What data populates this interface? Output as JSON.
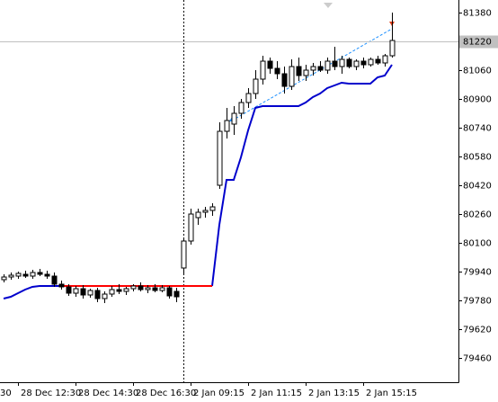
{
  "chart_data": {
    "type": "candlestick",
    "categories": [
      null,
      null,
      "28 Dec 12:30",
      null,
      null,
      null,
      null,
      null,
      null,
      null,
      "28 Dec 14:30",
      null,
      null,
      null,
      null,
      null,
      null,
      null,
      "28 Dec 16:30",
      null,
      null,
      null,
      null,
      null,
      null,
      null,
      "2 Jan 09:15",
      null,
      null,
      null,
      null,
      null,
      null,
      null,
      "2 Jan 11:15",
      null,
      null,
      null,
      null,
      null,
      null,
      null,
      "2 Jan 13:15",
      null,
      null,
      null,
      null,
      null,
      null,
      null,
      "2 Jan 15:15",
      null,
      null,
      null,
      null
    ],
    "x_label_partial": "30",
    "open": [
      79895,
      79910,
      79915,
      79925,
      79915,
      79935,
      79925,
      79915,
      79870,
      79855,
      79820,
      79845,
      79810,
      79835,
      79790,
      79815,
      79840,
      79830,
      79845,
      79860,
      79840,
      79850,
      79835,
      79850,
      79830,
      79960,
      80110,
      80240,
      80270,
      80280,
      80420,
      80720,
      80760,
      80820,
      80880,
      80930,
      81010,
      81110,
      81070,
      81040,
      80970,
      81080,
      81030,
      81060,
      81080,
      81060,
      81110,
      81080,
      81120,
      81080,
      81110,
      81090,
      81120,
      81100,
      81140
    ],
    "high": [
      79925,
      79935,
      79940,
      79945,
      79950,
      79955,
      79945,
      79935,
      79890,
      79870,
      79860,
      79865,
      79845,
      79850,
      79830,
      79860,
      79870,
      79855,
      79870,
      79880,
      79865,
      79870,
      79865,
      79860,
      79850,
      80120,
      80290,
      80290,
      80300,
      80320,
      80770,
      80850,
      80860,
      80900,
      80960,
      81060,
      81140,
      81130,
      81110,
      81080,
      81120,
      81130,
      81090,
      81100,
      81110,
      81130,
      81190,
      81140,
      81130,
      81120,
      81130,
      81130,
      81140,
      81150,
      81380
    ],
    "low": [
      79880,
      79895,
      79900,
      79905,
      79900,
      79915,
      79900,
      79855,
      79840,
      79805,
      79800,
      79790,
      79795,
      79770,
      79765,
      79800,
      79815,
      79810,
      79830,
      79830,
      79820,
      79825,
      79825,
      79790,
      79770,
      79920,
      80090,
      80200,
      80240,
      80250,
      80400,
      80680,
      80700,
      80790,
      80850,
      80900,
      80980,
      81040,
      81010,
      80930,
      80950,
      81000,
      81000,
      81030,
      81050,
      81040,
      81060,
      81040,
      81070,
      81060,
      81070,
      81080,
      81090,
      81080,
      81130
    ],
    "close": [
      79910,
      79920,
      79930,
      79915,
      79935,
      79925,
      79915,
      79870,
      79855,
      79820,
      79845,
      79810,
      79835,
      79790,
      79815,
      79840,
      79830,
      79845,
      79860,
      79840,
      79850,
      79835,
      79850,
      79805,
      79800,
      80110,
      80260,
      80270,
      80280,
      80300,
      80720,
      80780,
      80820,
      80880,
      80930,
      81010,
      81110,
      81070,
      81040,
      80970,
      81080,
      81030,
      81060,
      81080,
      81060,
      81110,
      81080,
      81120,
      81080,
      81110,
      81090,
      81120,
      81100,
      81140,
      81225
    ],
    "series": [
      {
        "color": "#0000cc",
        "values": [
          79790,
          79800,
          79820,
          79840,
          79855,
          79860,
          79860,
          79860,
          79860,
          null,
          null,
          null,
          null,
          null,
          null,
          null,
          null,
          null,
          null,
          null,
          null,
          null,
          null,
          null,
          null,
          null,
          null,
          null,
          null,
          79860,
          80200,
          80450,
          80450,
          80575,
          80725,
          80850,
          80860,
          80860,
          80860,
          80860,
          80860,
          80860,
          80880,
          80910,
          80930,
          80960,
          80975,
          80990,
          80985,
          80985,
          80985,
          80985,
          81020,
          81030,
          81090
        ]
      },
      {
        "color": "#ff0000",
        "values": [
          null,
          null,
          null,
          null,
          null,
          null,
          null,
          null,
          79860,
          79860,
          79860,
          79860,
          79860,
          79860,
          79860,
          79860,
          79860,
          79860,
          79860,
          79860,
          79860,
          79860,
          79860,
          79860,
          79860,
          79860,
          79860,
          79860,
          79860,
          79860,
          null,
          null,
          null,
          null,
          null,
          null,
          null,
          null,
          null,
          null,
          null,
          null,
          null,
          null,
          null,
          null,
          null,
          null,
          null,
          null,
          null,
          null,
          null,
          null,
          null
        ]
      }
    ],
    "ylim": [
      79325,
      81450
    ],
    "yticks": [
      81380,
      81220,
      81060,
      80900,
      80740,
      80580,
      80420,
      80260,
      80100,
      79940,
      79780,
      79620,
      79460
    ],
    "price_line": 81220
  }
}
